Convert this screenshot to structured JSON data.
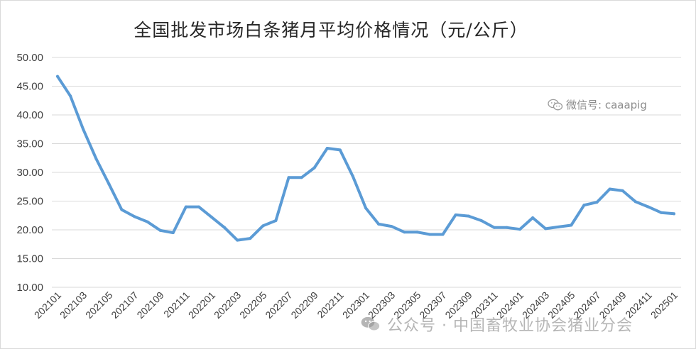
{
  "chart_data": {
    "type": "line",
    "title": "全国批发市场白条猪月平均价格情况（元/公斤）",
    "ylim": [
      10,
      50
    ],
    "yticks": [
      "10.00",
      "15.00",
      "20.00",
      "25.00",
      "30.00",
      "35.00",
      "40.00",
      "45.00",
      "50.00"
    ],
    "grid": true,
    "legend": "none",
    "x_tick_labels": [
      "202101",
      "202103",
      "202105",
      "202107",
      "202109",
      "202111",
      "202201",
      "202203",
      "202205",
      "202207",
      "202209",
      "202211",
      "202301",
      "202303",
      "202305",
      "202307",
      "202309",
      "202311",
      "202401",
      "202403",
      "202405",
      "202407",
      "202409",
      "202411",
      "202501"
    ],
    "x": [
      "202101",
      "202102",
      "202103",
      "202104",
      "202105",
      "202106",
      "202107",
      "202108",
      "202109",
      "202110",
      "202111",
      "202112",
      "202201",
      "202202",
      "202203",
      "202204",
      "202205",
      "202206",
      "202207",
      "202208",
      "202209",
      "202210",
      "202211",
      "202212",
      "202301",
      "202302",
      "202303",
      "202304",
      "202305",
      "202306",
      "202307",
      "202308",
      "202309",
      "202310",
      "202311",
      "202312",
      "202401",
      "202402",
      "202403",
      "202404",
      "202405",
      "202406",
      "202407",
      "202408",
      "202409",
      "202410",
      "202411",
      "202412",
      "202501"
    ],
    "series": [
      {
        "color": "#5b9bd5",
        "values": [
          46.7,
          43.3,
          37.5,
          32.4,
          28.0,
          23.5,
          22.3,
          21.4,
          19.9,
          19.5,
          24.0,
          24.0,
          22.2,
          20.4,
          18.2,
          18.5,
          20.7,
          21.6,
          29.1,
          29.1,
          30.8,
          34.2,
          33.9,
          29.3,
          23.8,
          21.0,
          20.6,
          19.6,
          19.6,
          19.2,
          19.2,
          22.6,
          22.4,
          21.6,
          20.4,
          20.4,
          20.1,
          22.1,
          20.2,
          20.5,
          20.8,
          24.3,
          24.8,
          27.1,
          26.8,
          24.9,
          24.0,
          23.0,
          22.8
        ]
      }
    ]
  },
  "watermarks": {
    "top": "微信号: caaapig",
    "bottom": "公众号 · 中国畜牧业协会猪业分会",
    "icon": "wechat-icon"
  }
}
